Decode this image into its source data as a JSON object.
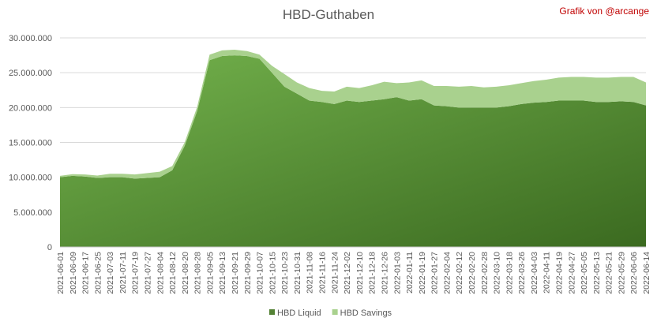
{
  "chart_data": {
    "type": "stacked-area",
    "title": "HBD-Guthaben",
    "annotation": "Grafik von @arcange",
    "categories": [
      "2021-06-01",
      "2021-06-09",
      "2021-06-17",
      "2021-06-25",
      "2021-07-03",
      "2021-07-11",
      "2021-07-19",
      "2021-07-27",
      "2021-08-04",
      "2021-08-12",
      "2021-08-20",
      "2021-08-28",
      "2021-09-05",
      "2021-09-13",
      "2021-09-21",
      "2021-09-29",
      "2021-10-07",
      "2021-10-15",
      "2021-10-23",
      "2021-10-31",
      "2021-11-08",
      "2021-11-16",
      "2021-11-24",
      "2021-12-02",
      "2021-12-10",
      "2021-12-18",
      "2021-12-26",
      "2022-01-03",
      "2022-01-11",
      "2022-01-19",
      "2022-01-27",
      "2022-02-04",
      "2022-02-12",
      "2022-02-20",
      "2022-02-28",
      "2022-03-10",
      "2022-03-18",
      "2022-03-26",
      "2022-04-03",
      "2022-04-11",
      "2022-04-19",
      "2022-04-27",
      "2022-05-05",
      "2022-05-13",
      "2022-05-21",
      "2022-05-29",
      "2022-06-06",
      "2022-06-14"
    ],
    "series": [
      {
        "name": "HBD Liquid",
        "color": "#548235",
        "values": [
          10000000,
          10200000,
          10100000,
          9900000,
          10000000,
          10000000,
          9800000,
          9900000,
          10000000,
          11000000,
          14500000,
          19500000,
          26800000,
          27400000,
          27500000,
          27400000,
          27000000,
          25000000,
          23000000,
          22000000,
          21000000,
          20800000,
          20500000,
          21000000,
          20800000,
          21000000,
          21200000,
          21500000,
          21000000,
          21200000,
          20300000,
          20200000,
          20000000,
          20000000,
          20000000,
          20000000,
          20200000,
          20500000,
          20700000,
          20800000,
          21000000,
          21000000,
          21000000,
          20800000,
          20800000,
          20900000,
          20800000,
          20300000
        ]
      },
      {
        "name": "HBD Savings",
        "color": "#a9d18e",
        "values": [
          200000,
          250000,
          300000,
          350000,
          500000,
          500000,
          600000,
          700000,
          800000,
          600000,
          500000,
          600000,
          800000,
          800000,
          800000,
          700000,
          600000,
          1000000,
          1800000,
          1600000,
          1800000,
          1600000,
          1800000,
          2000000,
          2000000,
          2200000,
          2500000,
          2000000,
          2600000,
          2700000,
          2800000,
          2900000,
          3000000,
          3100000,
          2900000,
          3000000,
          3000000,
          3000000,
          3100000,
          3200000,
          3300000,
          3400000,
          3400000,
          3500000,
          3500000,
          3500000,
          3600000,
          3300000
        ]
      }
    ],
    "ylim": [
      0,
      30000000
    ],
    "yticks": [
      {
        "value": 0,
        "label": "0"
      },
      {
        "value": 5000000,
        "label": "5.000.000"
      },
      {
        "value": 10000000,
        "label": "10.000.000"
      },
      {
        "value": 15000000,
        "label": "15.000.000"
      },
      {
        "value": 20000000,
        "label": "20.000.000"
      },
      {
        "value": 25000000,
        "label": "25.000.000"
      },
      {
        "value": 30000000,
        "label": "30.000.000"
      }
    ],
    "grid": true,
    "legend": "bottom"
  }
}
